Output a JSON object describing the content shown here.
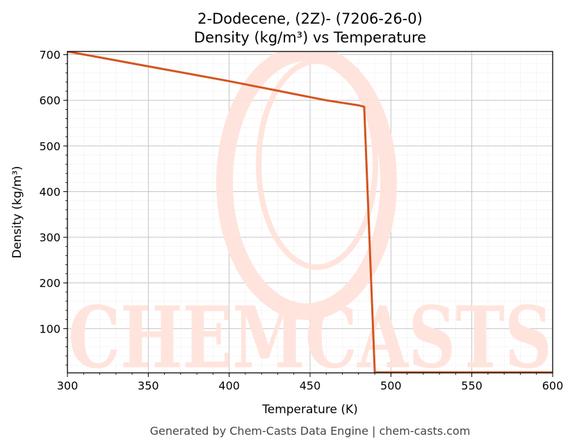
{
  "chart_data": {
    "type": "line",
    "title": "2-Dodecene, (2Z)- (7206-26-0)",
    "subtitle": "Density (kg/m³) vs Temperature",
    "xlabel": "Temperature (K)",
    "ylabel": "Density (kg/m³)",
    "xlim": [
      300,
      600
    ],
    "ylim": [
      3,
      707
    ],
    "xticks": [
      "300",
      "350",
      "400",
      "450",
      "500",
      "550",
      "600"
    ],
    "yticks": [
      "100",
      "200",
      "300",
      "400",
      "500",
      "600",
      "700"
    ],
    "grid": true,
    "line_color": "#d4541f",
    "series": [
      {
        "x": [
          300,
          320,
          340,
          360,
          380,
          400,
          420,
          440,
          460,
          480,
          483.5,
          490,
          500,
          550,
          600
        ],
        "y": [
          707,
          694,
          681,
          668,
          655,
          642,
          628,
          614,
          600,
          589,
          586,
          4,
          4,
          4,
          4
        ]
      }
    ]
  },
  "watermark": "CHEMCASTS",
  "footer": "Generated by Chem-Casts Data Engine | chem-casts.com"
}
